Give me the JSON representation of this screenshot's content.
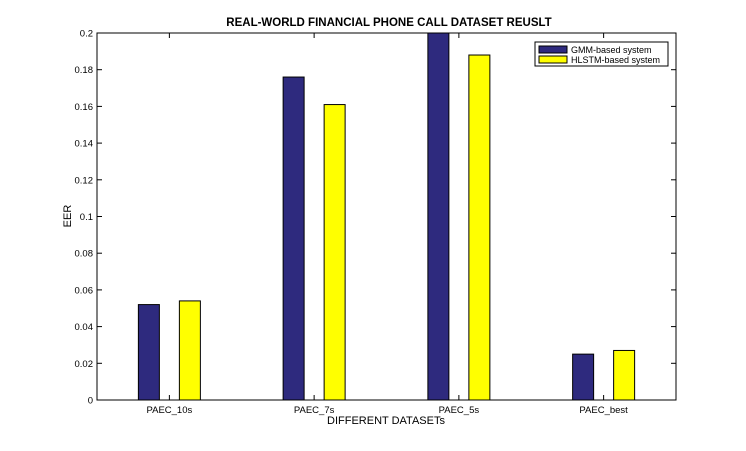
{
  "chart_data": {
    "type": "bar",
    "title": "REAL-WORLD FINANCIAL PHONE CALL DATASET REUSLT",
    "xlabel": "DIFFERENT DATASETs",
    "ylabel": "EER",
    "categories": [
      "PAEC_10s",
      "PAEC_7s",
      "PAEC_5s",
      "PAEC_best"
    ],
    "ylim": [
      0,
      0.2
    ],
    "yticks": [
      "0",
      "0.02",
      "0.04",
      "0.06",
      "0.08",
      "0.1",
      "0.12",
      "0.14",
      "0.16",
      "0.18",
      "0.2"
    ],
    "grid": false,
    "legend_position": "top-right",
    "series": [
      {
        "name": "GMM-based system",
        "color": "#2e2a7e",
        "values": [
          0.052,
          0.176,
          0.2,
          0.025
        ]
      },
      {
        "name": "HLSTM-based system",
        "color": "#ffff00",
        "values": [
          0.054,
          0.161,
          0.188,
          0.027
        ]
      }
    ]
  }
}
